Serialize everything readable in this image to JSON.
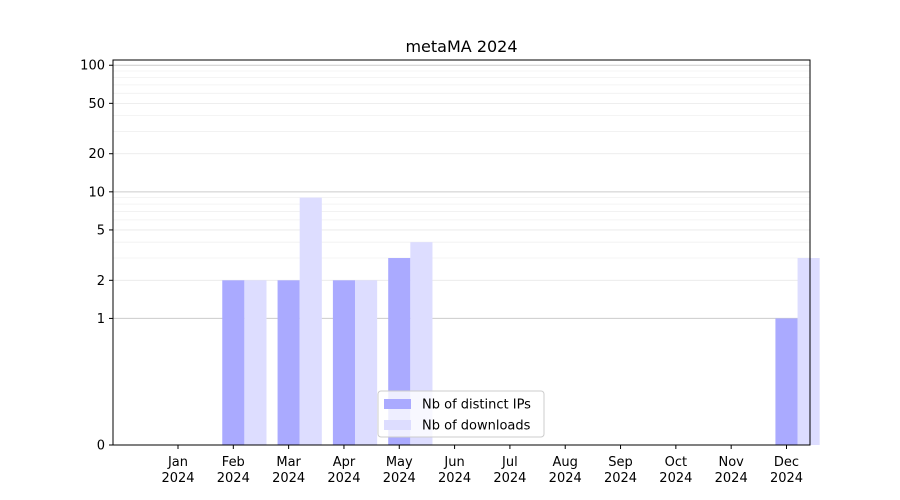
{
  "chart_data": {
    "type": "bar",
    "title": "metaMA 2024",
    "xlabel": "",
    "ylabel": "",
    "yscale": "symlog",
    "ylim": [
      0,
      110
    ],
    "yticks": [
      0,
      1,
      2,
      5,
      10,
      20,
      50,
      100
    ],
    "grid": "y",
    "legend_position": "bottom-center",
    "categories": [
      {
        "month": "Jan",
        "year": "2024"
      },
      {
        "month": "Feb",
        "year": "2024"
      },
      {
        "month": "Mar",
        "year": "2024"
      },
      {
        "month": "Apr",
        "year": "2024"
      },
      {
        "month": "May",
        "year": "2024"
      },
      {
        "month": "Jun",
        "year": "2024"
      },
      {
        "month": "Jul",
        "year": "2024"
      },
      {
        "month": "Aug",
        "year": "2024"
      },
      {
        "month": "Sep",
        "year": "2024"
      },
      {
        "month": "Oct",
        "year": "2024"
      },
      {
        "month": "Nov",
        "year": "2024"
      },
      {
        "month": "Dec",
        "year": "2024"
      }
    ],
    "series": [
      {
        "name": "Nb of distinct IPs",
        "color": "#aaaaff",
        "values": [
          0,
          2,
          2,
          2,
          3,
          0,
          0,
          0,
          0,
          0,
          0,
          1
        ]
      },
      {
        "name": "Nb of downloads",
        "color": "#ddddff",
        "values": [
          0,
          2,
          9,
          2,
          4,
          0,
          0,
          0,
          0,
          0,
          0,
          3
        ]
      }
    ]
  }
}
